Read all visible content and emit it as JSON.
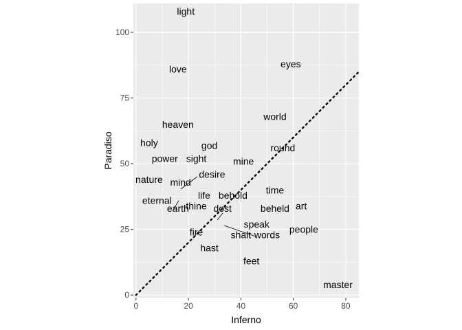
{
  "chart_data": {
    "type": "scatter",
    "title": "",
    "xlabel": "Inferno",
    "ylabel": "Paradiso",
    "xlim": [
      -1,
      85
    ],
    "ylim": [
      -1,
      111
    ],
    "xticks": [
      0,
      20,
      40,
      60,
      80
    ],
    "yticks": [
      0,
      25,
      50,
      75,
      100
    ],
    "grid": true,
    "panel_background": "#ebebeb",
    "grid_color": "#ffffff",
    "reference_line": {
      "slope": 1,
      "intercept": 0,
      "style": "dotted",
      "color": "#000000"
    },
    "points": [
      {
        "word": "light",
        "x": 19,
        "y": 108
      },
      {
        "word": "love",
        "x": 16,
        "y": 86
      },
      {
        "word": "eyes",
        "x": 59,
        "y": 88
      },
      {
        "word": "world",
        "x": 53,
        "y": 68
      },
      {
        "word": "heaven",
        "x": 16,
        "y": 65
      },
      {
        "word": "holy",
        "x": 5,
        "y": 58
      },
      {
        "word": "god",
        "x": 28,
        "y": 57
      },
      {
        "word": "round",
        "x": 56,
        "y": 56
      },
      {
        "word": "power",
        "x": 11,
        "y": 52
      },
      {
        "word": "sight",
        "x": 23,
        "y": 52
      },
      {
        "word": "mine",
        "x": 41,
        "y": 51
      },
      {
        "word": "nature",
        "x": 5,
        "y": 44
      },
      {
        "word": "mind",
        "x": 17,
        "y": 43
      },
      {
        "word": "desire",
        "x": 29,
        "y": 46
      },
      {
        "word": "life",
        "x": 26,
        "y": 38
      },
      {
        "word": "behold",
        "x": 37,
        "y": 38
      },
      {
        "word": "time",
        "x": 53,
        "y": 40
      },
      {
        "word": "eternal",
        "x": 8,
        "y": 36
      },
      {
        "word": "thine",
        "x": 23,
        "y": 34
      },
      {
        "word": "dost",
        "x": 33,
        "y": 33
      },
      {
        "word": "beheld",
        "x": 53,
        "y": 33
      },
      {
        "word": "art",
        "x": 63,
        "y": 34
      },
      {
        "word": "earth",
        "x": 16,
        "y": 33
      },
      {
        "word": "speak",
        "x": 46,
        "y": 27
      },
      {
        "word": "people",
        "x": 64,
        "y": 25
      },
      {
        "word": "fire",
        "x": 23,
        "y": 24
      },
      {
        "word": "shalt",
        "x": 40,
        "y": 23
      },
      {
        "word": "words",
        "x": 50,
        "y": 23
      },
      {
        "word": "hast",
        "x": 28,
        "y": 18
      },
      {
        "word": "feet",
        "x": 44,
        "y": 13
      },
      {
        "word": "master",
        "x": 77,
        "y": 4
      }
    ]
  }
}
